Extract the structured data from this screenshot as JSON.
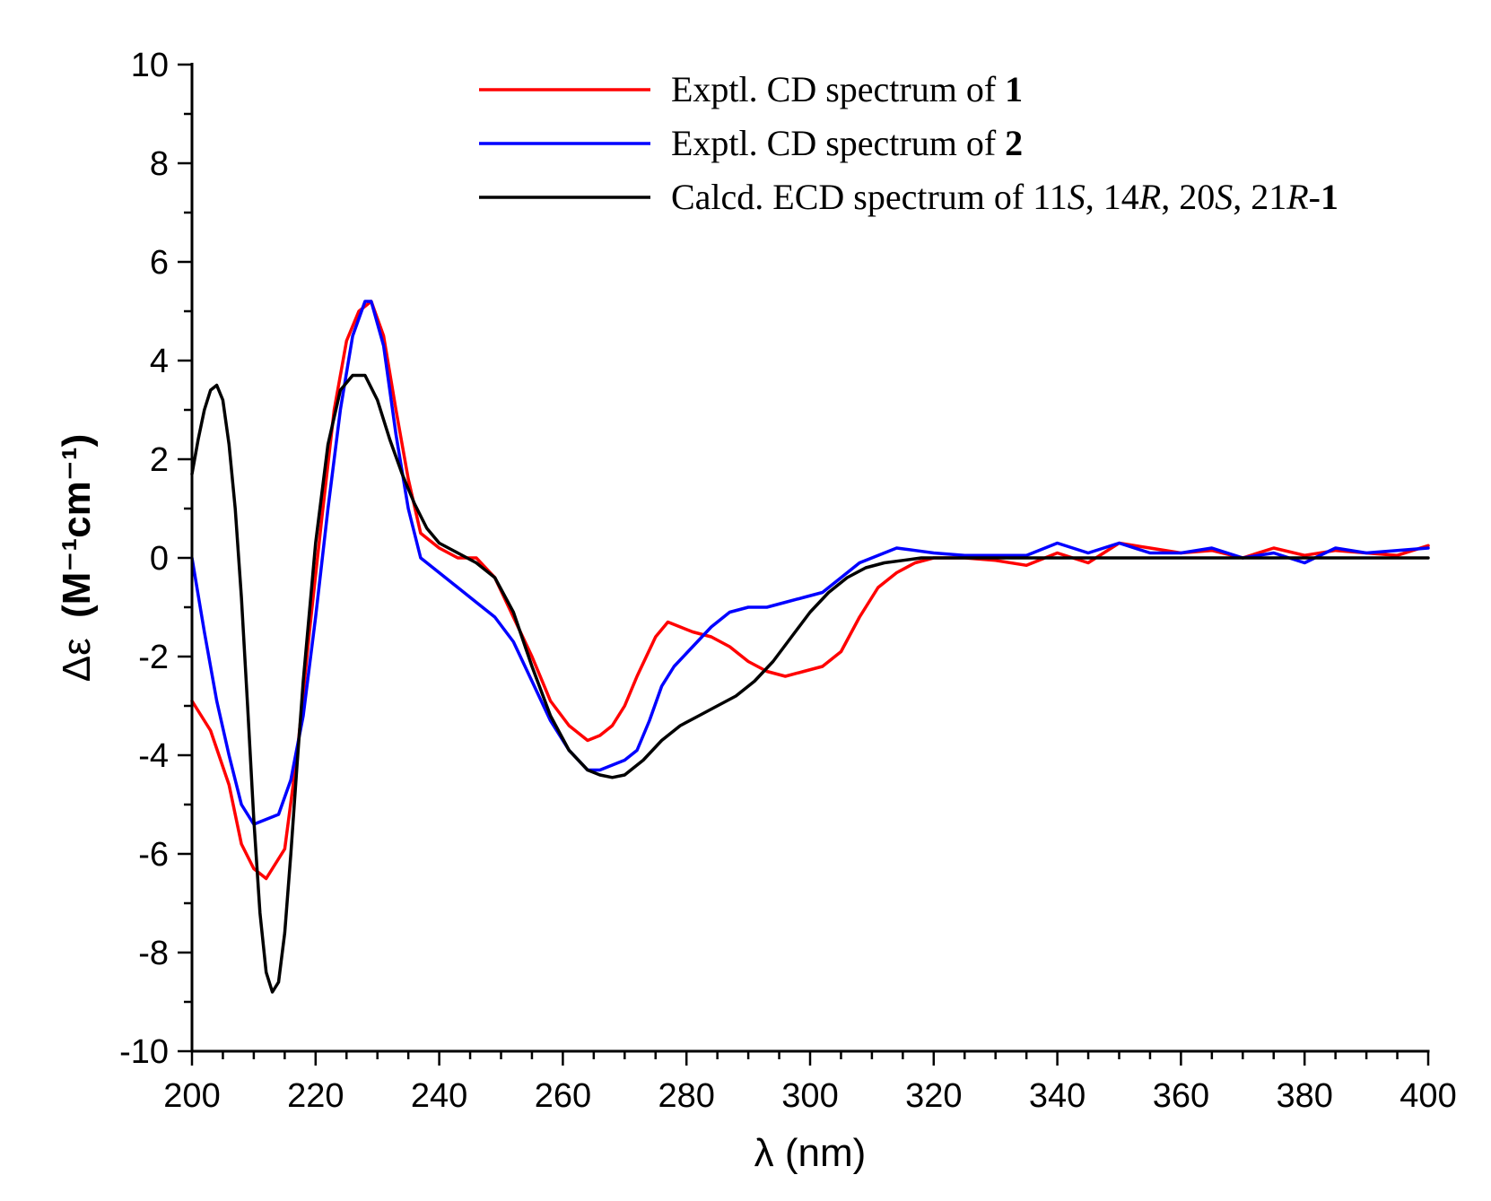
{
  "chart_data": {
    "type": "line",
    "title": "",
    "xlabel": "λ (nm)",
    "ylabel_main": "Δε",
    "ylabel_units": "(M⁻¹cm⁻¹)",
    "xlim": [
      200,
      400
    ],
    "ylim": [
      -10,
      10
    ],
    "x_ticks": [
      200,
      220,
      240,
      260,
      280,
      300,
      320,
      340,
      360,
      380,
      400
    ],
    "y_ticks": [
      -10,
      -8,
      -6,
      -4,
      -2,
      0,
      2,
      4,
      6,
      8,
      10
    ],
    "legend_position": "top-right",
    "series": [
      {
        "name": "Exptl. CD spectrum of 1",
        "legend_prefix": "Exptl. CD spectrum of ",
        "legend_compound": "1",
        "color": "#ff0000",
        "x": [
          200,
          203,
          206,
          208,
          210,
          212,
          213,
          215,
          217,
          219,
          221,
          223,
          225,
          227,
          229,
          231,
          233,
          235,
          237,
          240,
          243,
          246,
          249,
          252,
          255,
          258,
          261,
          264,
          266,
          268,
          270,
          272,
          275,
          277,
          279,
          281,
          284,
          287,
          290,
          293,
          296,
          299,
          302,
          305,
          308,
          311,
          314,
          317,
          320,
          325,
          330,
          335,
          340,
          345,
          350,
          355,
          360,
          365,
          370,
          375,
          380,
          385,
          390,
          395,
          400
        ],
        "y": [
          -2.9,
          -3.5,
          -4.6,
          -5.8,
          -6.3,
          -6.5,
          -6.3,
          -5.9,
          -4.0,
          -1.5,
          0.8,
          3.0,
          4.4,
          5.0,
          5.2,
          4.5,
          3.0,
          1.6,
          0.5,
          0.2,
          0.0,
          0.0,
          -0.4,
          -1.2,
          -2.0,
          -2.9,
          -3.4,
          -3.7,
          -3.6,
          -3.4,
          -3.0,
          -2.4,
          -1.6,
          -1.3,
          -1.4,
          -1.5,
          -1.6,
          -1.8,
          -2.1,
          -2.3,
          -2.4,
          -2.3,
          -2.2,
          -1.9,
          -1.2,
          -0.6,
          -0.3,
          -0.1,
          0.0,
          0.0,
          -0.05,
          -0.15,
          0.1,
          -0.1,
          0.3,
          0.2,
          0.1,
          0.15,
          0.0,
          0.2,
          0.05,
          0.15,
          0.1,
          0.05,
          0.25
        ]
      },
      {
        "name": "Exptl. CD spectrum of 2",
        "legend_prefix": "Exptl. CD spectrum of ",
        "legend_compound": "2",
        "color": "#0000ff",
        "x": [
          200,
          202,
          204,
          206,
          208,
          210,
          212,
          214,
          216,
          218,
          220,
          222,
          224,
          226,
          228,
          229,
          231,
          233,
          235,
          237,
          240,
          243,
          246,
          249,
          252,
          255,
          258,
          261,
          264,
          266,
          268,
          270,
          272,
          274,
          276,
          278,
          281,
          284,
          287,
          290,
          293,
          296,
          299,
          302,
          305,
          308,
          311,
          314,
          317,
          320,
          325,
          330,
          335,
          340,
          345,
          350,
          355,
          360,
          365,
          370,
          375,
          380,
          385,
          390,
          395,
          400
        ],
        "y": [
          0.0,
          -1.5,
          -2.9,
          -4.0,
          -5.0,
          -5.4,
          -5.3,
          -5.2,
          -4.5,
          -3.2,
          -1.2,
          1.0,
          3.0,
          4.5,
          5.2,
          5.2,
          4.3,
          2.5,
          1.0,
          0.0,
          -0.3,
          -0.6,
          -0.9,
          -1.2,
          -1.7,
          -2.5,
          -3.3,
          -3.9,
          -4.3,
          -4.3,
          -4.2,
          -4.1,
          -3.9,
          -3.3,
          -2.6,
          -2.2,
          -1.8,
          -1.4,
          -1.1,
          -1.0,
          -1.0,
          -0.9,
          -0.8,
          -0.7,
          -0.4,
          -0.1,
          0.05,
          0.2,
          0.15,
          0.1,
          0.05,
          0.05,
          0.05,
          0.3,
          0.1,
          0.3,
          0.1,
          0.1,
          0.2,
          0.0,
          0.1,
          -0.1,
          0.2,
          0.1,
          0.15,
          0.2
        ]
      },
      {
        "name": "Calcd. ECD spectrum of 11S, 14R, 20S, 21R-1",
        "legend_prefix": "Calcd. ECD spectrum of ",
        "legend_compound": "1",
        "legend_config": [
          {
            "num": "11",
            "label": "S",
            "sep": ", "
          },
          {
            "num": "14",
            "label": "R",
            "sep": ", "
          },
          {
            "num": "20",
            "label": "S",
            "sep": ", "
          },
          {
            "num": "21",
            "label": "R",
            "sep": "-"
          }
        ],
        "color": "#000000",
        "x": [
          200,
          201,
          202,
          203,
          204,
          205,
          206,
          207,
          208,
          209,
          210,
          211,
          212,
          213,
          214,
          215,
          216,
          217,
          218,
          220,
          222,
          224,
          226,
          228,
          230,
          232,
          234,
          236,
          238,
          240,
          243,
          246,
          249,
          252,
          255,
          258,
          261,
          264,
          266,
          268,
          270,
          273,
          276,
          279,
          282,
          285,
          288,
          291,
          294,
          297,
          300,
          303,
          306,
          309,
          312,
          315,
          318,
          320,
          330,
          340,
          350,
          360,
          370,
          380,
          390,
          400
        ],
        "y": [
          1.7,
          2.4,
          3.0,
          3.4,
          3.5,
          3.2,
          2.3,
          1.0,
          -0.8,
          -3.0,
          -5.3,
          -7.2,
          -8.4,
          -8.8,
          -8.6,
          -7.6,
          -6.0,
          -4.2,
          -2.5,
          0.3,
          2.3,
          3.4,
          3.7,
          3.7,
          3.2,
          2.4,
          1.7,
          1.1,
          0.6,
          0.3,
          0.1,
          -0.1,
          -0.4,
          -1.1,
          -2.2,
          -3.2,
          -3.9,
          -4.3,
          -4.4,
          -4.45,
          -4.4,
          -4.1,
          -3.7,
          -3.4,
          -3.2,
          -3.0,
          -2.8,
          -2.5,
          -2.1,
          -1.6,
          -1.1,
          -0.7,
          -0.4,
          -0.2,
          -0.1,
          -0.05,
          0.0,
          0.0,
          0.0,
          0.0,
          0.0,
          0.0,
          0.0,
          0.0,
          0.0,
          0.0
        ]
      }
    ]
  }
}
